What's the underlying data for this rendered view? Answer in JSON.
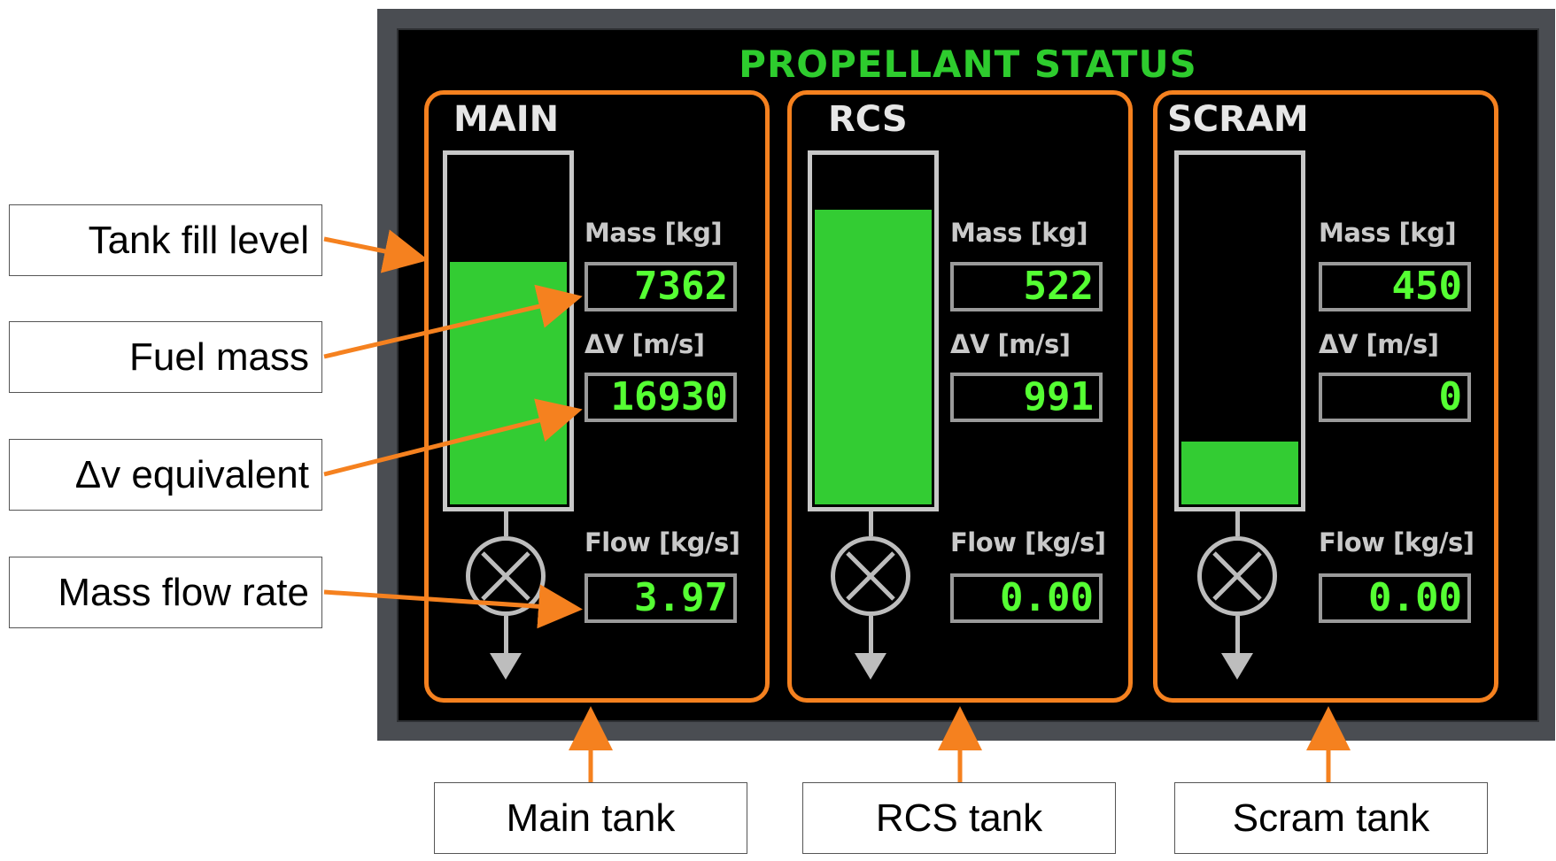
{
  "panel": {
    "title": "PROPELLANT STATUS",
    "accent_color": "#f5811f",
    "fill_color": "#33cc33",
    "readout_color": "#55ff33"
  },
  "labels": {
    "mass": "Mass [kg]",
    "dv": "ΔV [m/s]",
    "flow": "Flow [kg/s]"
  },
  "tanks": [
    {
      "name": "MAIN",
      "fill_level": 0.7,
      "mass": "7362",
      "dv": "16930",
      "flow": "3.97",
      "valve_icon": "valve-icon"
    },
    {
      "name": "RCS",
      "fill_level": 0.85,
      "mass": "522",
      "dv": "991",
      "flow": "0.00",
      "valve_icon": "valve-icon"
    },
    {
      "name": "SCRAM",
      "fill_level": 0.18,
      "mass": "450",
      "dv": "0",
      "flow": "0.00",
      "valve_icon": "valve-icon"
    }
  ],
  "callouts": {
    "left": [
      "Tank fill level",
      "Fuel mass",
      "Δv equivalent",
      "Mass flow rate"
    ],
    "bottom": [
      "Main tank",
      "RCS tank",
      "Scram tank"
    ]
  }
}
